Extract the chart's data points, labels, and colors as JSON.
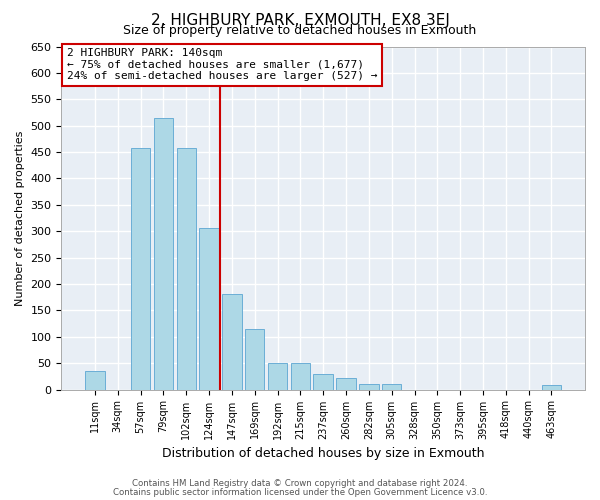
{
  "title": "2, HIGHBURY PARK, EXMOUTH, EX8 3EJ",
  "subtitle": "Size of property relative to detached houses in Exmouth",
  "xlabel": "Distribution of detached houses by size in Exmouth",
  "ylabel": "Number of detached properties",
  "bar_labels": [
    "11sqm",
    "34sqm",
    "57sqm",
    "79sqm",
    "102sqm",
    "124sqm",
    "147sqm",
    "169sqm",
    "192sqm",
    "215sqm",
    "237sqm",
    "260sqm",
    "282sqm",
    "305sqm",
    "328sqm",
    "350sqm",
    "373sqm",
    "395sqm",
    "418sqm",
    "440sqm",
    "463sqm"
  ],
  "bar_values": [
    35,
    0,
    457,
    515,
    457,
    307,
    182,
    115,
    50,
    50,
    30,
    22,
    10,
    10,
    0,
    0,
    0,
    0,
    0,
    0,
    8
  ],
  "bar_color": "#add8e6",
  "bar_edge_color": "#6baed6",
  "vline_color": "#cc0000",
  "vline_x_idx": 6,
  "ylim": [
    0,
    650
  ],
  "yticks": [
    0,
    50,
    100,
    150,
    200,
    250,
    300,
    350,
    400,
    450,
    500,
    550,
    600,
    650
  ],
  "annotation_line1": "2 HIGHBURY PARK: 140sqm",
  "annotation_line2": "← 75% of detached houses are smaller (1,677)",
  "annotation_line3": "24% of semi-detached houses are larger (527) →",
  "annotation_box_color": "#ffffff",
  "annotation_box_edge": "#cc0000",
  "footnote1": "Contains HM Land Registry data © Crown copyright and database right 2024.",
  "footnote2": "Contains public sector information licensed under the Open Government Licence v3.0.",
  "bg_color": "#e8eef5"
}
